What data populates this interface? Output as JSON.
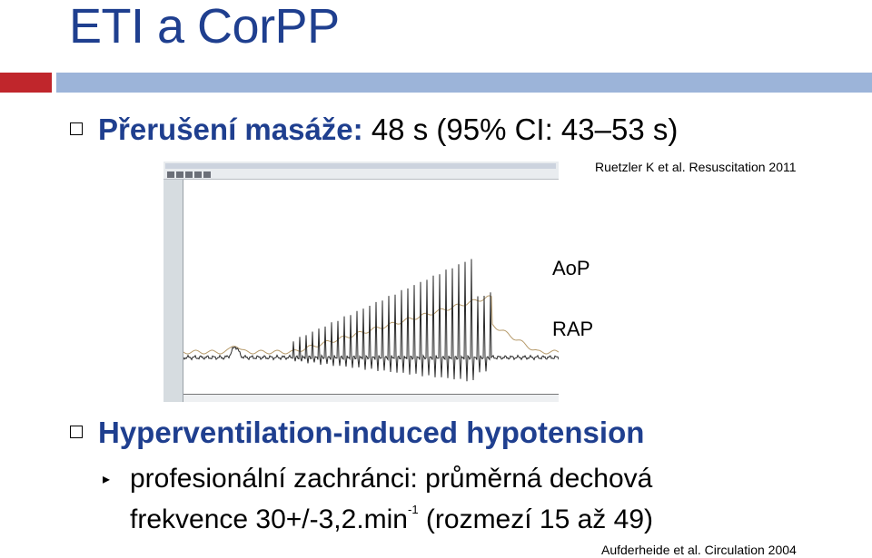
{
  "title": "ETI a CorPP",
  "accent_colors": {
    "title": "#1f3f8f",
    "bar_red": "#c0262c",
    "bar_blue": "#9cb4d9"
  },
  "bullet1": {
    "label": "Přerušení masáže:",
    "value": "48 s (95% CI: 43–53 s)"
  },
  "citation1": "Ruetzler K et al. Resuscitation 2011",
  "figure": {
    "type": "pressure-trace-screenshot",
    "label_aop": "AoP",
    "label_rap": "RAP"
  },
  "bullet2": {
    "label": "Hyperventilation-induced hypotension"
  },
  "subbullet": {
    "icon": "sub-bullet-icon",
    "line1": "profesionální zachránci: průměrná dechová",
    "line2_prefix": "frekvence 30+/-3,2.min",
    "line2_sup": "-1",
    "line2_suffix": " (rozmezí 15 až 49)"
  },
  "citation2": "Aufderheide et al. Circulation 2004"
}
